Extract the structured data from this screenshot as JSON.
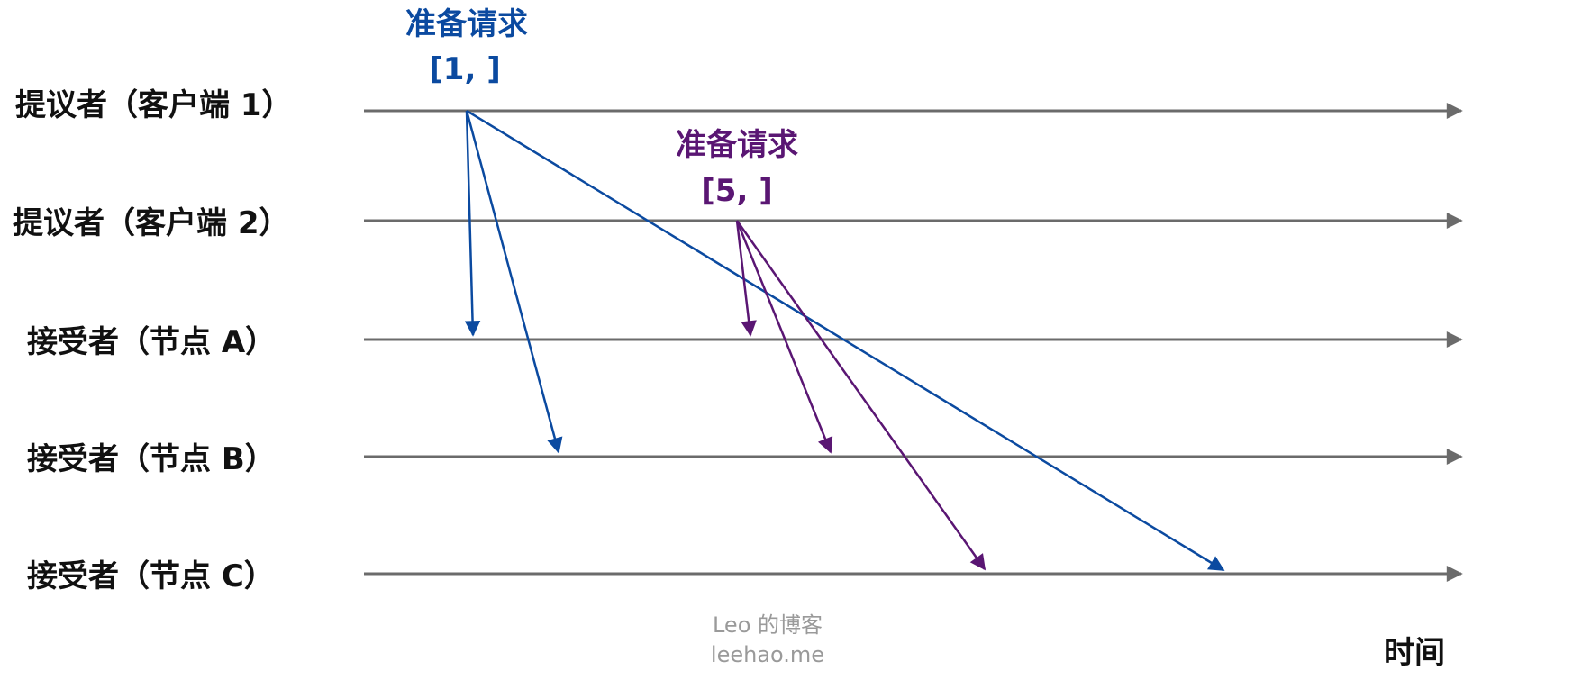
{
  "colors": {
    "timeline": "#6b6b6b",
    "client1_request": "#0b4aa0",
    "client2_request": "#5a1673",
    "label": "#111111",
    "watermark": "#9a9a9a"
  },
  "lanes": [
    {
      "id": "proposer-1",
      "label": "提议者（客户端 1）"
    },
    {
      "id": "proposer-2",
      "label": "提议者（客户端 2）"
    },
    {
      "id": "acceptor-a",
      "label": "接受者（节点 A）"
    },
    {
      "id": "acceptor-b",
      "label": "接受者（节点 B）"
    },
    {
      "id": "acceptor-c",
      "label": "接受者（节点 C）"
    }
  ],
  "requests": [
    {
      "id": "client1-prepare",
      "title": "准备请求",
      "value": "[1, ]",
      "color": "#0b4aa0",
      "from": "proposer-1",
      "to": [
        "acceptor-a",
        "acceptor-b",
        "acceptor-c"
      ]
    },
    {
      "id": "client2-prepare",
      "title": "准备请求",
      "value": "[5, ]",
      "color": "#5a1673",
      "from": "proposer-2",
      "to": [
        "acceptor-a",
        "acceptor-b",
        "acceptor-c"
      ]
    }
  ],
  "watermark": {
    "line1": "Leo 的博客",
    "line2": "leehao.me"
  },
  "time_label": "时间"
}
